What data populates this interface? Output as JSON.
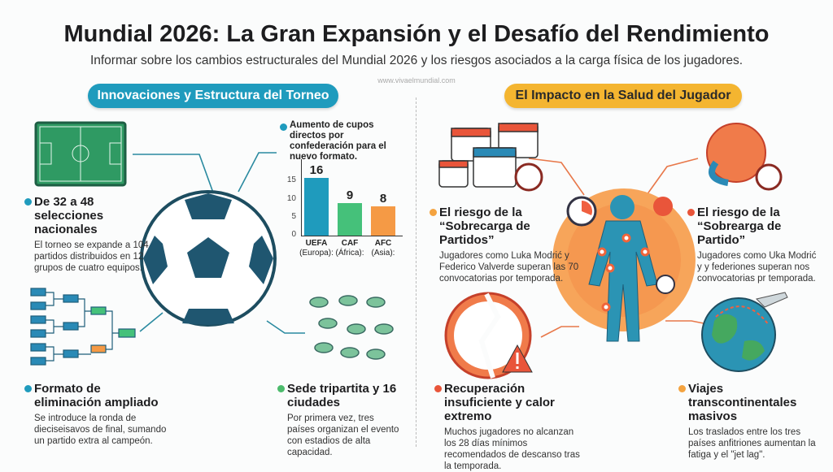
{
  "header": {
    "title": "Mundial 2026: La Gran Expansión y el Desafío del Rendimiento",
    "subtitle": "Informar sobre los cambios estructurales del Mundial 2026 y los riesgos asociados a la carga física de los jugadores.",
    "watermark": "www.vivaelmundial.com"
  },
  "left": {
    "heading": "Innovaciones y Estructura del Torneo",
    "accent": "#1f9bbd",
    "blocks": [
      {
        "title": "De 32 a 48 selecciones nacionales",
        "text": "El torneo se expande a 104 partidos distribuidos en 12 grupos de cuatro equipos.",
        "dot": "#1f9bbd"
      },
      {
        "title": "Formato de eliminación ampliado",
        "text": "Se introduce la ronda de dieciseisavos de final, sumando un partido extra al campeón.",
        "dot": "#1f9bbd"
      },
      {
        "title": "Sede tripartita y 16 ciudades",
        "text": "Por primera vez, tres países organizan el evento con estadios de alta capacidad.",
        "dot": "#4cbb6c"
      }
    ],
    "chart": {
      "title": "Aumento de cupos directos por confederación para el nuevo formato.",
      "type": "bar",
      "yticks": [
        "0",
        "5",
        "10",
        "15"
      ],
      "ylim": [
        0,
        18
      ],
      "categories": [
        {
          "name": "UEFA",
          "sub": "(Europa):"
        },
        {
          "name": "CAF",
          "sub": "(África):"
        },
        {
          "name": "AFC",
          "sub": "(Asia):"
        }
      ],
      "values": [
        16,
        9,
        8
      ],
      "value_labels": [
        "16",
        "9",
        "8"
      ],
      "colors": [
        "#1f9bbd",
        "#45c17a",
        "#f59a45"
      ]
    }
  },
  "right": {
    "heading": "El Impacto en la Salud del Jugador",
    "accent": "#f4b530",
    "blocks": [
      {
        "title": "El riesgo de la “Sobrecarga de Partidos”",
        "text": "Jugadores como Luka Modrić y Federico Valverde superan las 70 convocatorias por temporada.",
        "dot": "#f4a340"
      },
      {
        "title": "El riesgo de la “Sobrearga de Partido”",
        "text": "Jugadores como Uka Modrić y y federiones superan nos convocatorias pr temporada.",
        "dot": "#e9553a"
      },
      {
        "title": "Recuperación insuficiente y calor extremo",
        "text": "Muchos jugadores no alcanzan los 28 días mínimos recomendados de descanso tras la temporada.",
        "dot": "#e9553a"
      },
      {
        "title": "Viajes transcontinentales masivos",
        "text": "Los traslados entre los tres países anfitriones aumentan la fatiga y el \"jet lag\".",
        "dot": "#f4a340"
      }
    ]
  }
}
